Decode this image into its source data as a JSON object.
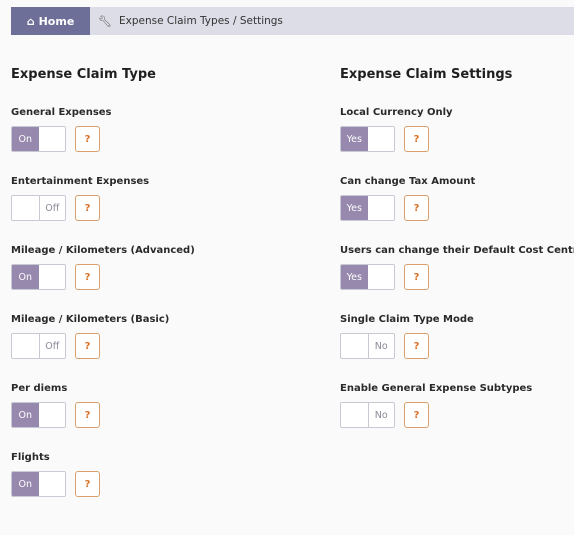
{
  "breadcrumb": {
    "home_label": "Home",
    "home_icon": "home-icon",
    "path_icon": "wrench-icon",
    "path": "Expense Claim Types / Settings"
  },
  "left": {
    "title": "Expense Claim Type",
    "items": [
      {
        "label": "General Expenses",
        "value": "On",
        "state": "on"
      },
      {
        "label": "Entertainment Expenses",
        "value": "Off",
        "state": "off"
      },
      {
        "label": "Mileage / Kilometers (Advanced)",
        "value": "On",
        "state": "on"
      },
      {
        "label": "Mileage / Kilometers (Basic)",
        "value": "Off",
        "state": "off"
      },
      {
        "label": "Per diems",
        "value": "On",
        "state": "on"
      },
      {
        "label": "Flights",
        "value": "On",
        "state": "on"
      }
    ]
  },
  "right": {
    "title": "Expense Claim Settings",
    "items": [
      {
        "label": "Local Currency Only",
        "value": "Yes",
        "state": "on"
      },
      {
        "label": "Can change Tax Amount",
        "value": "Yes",
        "state": "on"
      },
      {
        "label": "Users can change their Default Cost Centre",
        "value": "Yes",
        "state": "on"
      },
      {
        "label": "Single Claim Type Mode",
        "value": "No",
        "state": "off"
      },
      {
        "label": "Enable General Expense Subtypes",
        "value": "No",
        "state": "off"
      }
    ]
  },
  "help_label": "?",
  "colors": {
    "toggle_on": "#9689ad",
    "home_button": "#6e6f99",
    "help_border": "#d9a06b"
  }
}
